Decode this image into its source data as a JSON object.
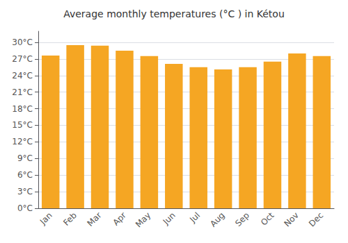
{
  "chart_data": {
    "type": "bar",
    "title": "Average monthly temperatures (°C ) in Kétou",
    "categories": [
      "Jan",
      "Feb",
      "Mar",
      "Apr",
      "May",
      "Jun",
      "Jul",
      "Aug",
      "Sep",
      "Oct",
      "Nov",
      "Dec"
    ],
    "values": [
      27.6,
      29.5,
      29.4,
      28.5,
      27.5,
      26.1,
      25.5,
      25.1,
      25.5,
      26.5,
      28.0,
      27.5
    ],
    "color": "#F5A623",
    "ylim": [
      0,
      32
    ],
    "yticks": [
      {
        "value": 0,
        "label": "0°C"
      },
      {
        "value": 3,
        "label": "3°C"
      },
      {
        "value": 6,
        "label": "6°C"
      },
      {
        "value": 9,
        "label": "9°C"
      },
      {
        "value": 12,
        "label": "12°C"
      },
      {
        "value": 15,
        "label": "15°C"
      },
      {
        "value": 18,
        "label": "18°C"
      },
      {
        "value": 21,
        "label": "21°C"
      },
      {
        "value": 24,
        "label": "24°C"
      },
      {
        "value": 27,
        "label": "27°C"
      },
      {
        "value": 30,
        "label": "30°C"
      }
    ],
    "grid": true
  }
}
